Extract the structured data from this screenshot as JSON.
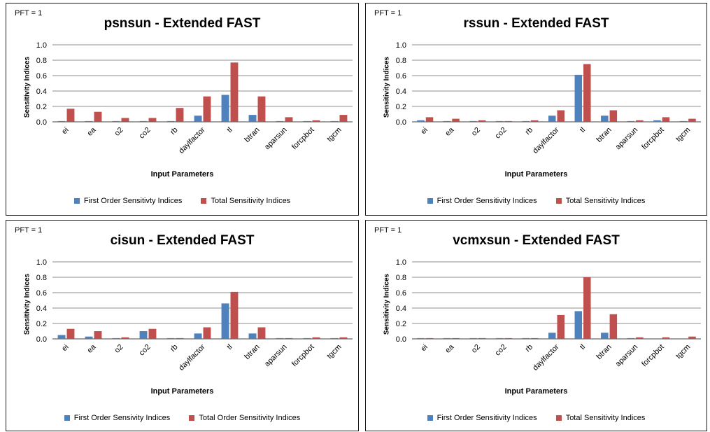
{
  "colors": {
    "first": "#4f81bd",
    "total": "#c0504d",
    "grid": "#8c8c8c"
  },
  "chart_data": [
    {
      "type": "bar",
      "pft_label": "PFT = 1",
      "title": "psnsun - Extended FAST",
      "xlabel": "Input Parameters",
      "ylabel": "Sensitivity Indices",
      "ylim": [
        0,
        1.0
      ],
      "yticks": [
        "0.0",
        "0.2",
        "0.4",
        "0.6",
        "0.8",
        "1.0"
      ],
      "categories": [
        "ei",
        "ea",
        "o2",
        "co2",
        "rb",
        "daylfactor",
        "tl",
        "btran",
        "aparsun",
        "forcpbot",
        "tgcm"
      ],
      "series": [
        {
          "name": "First Order Sensitivty Indices",
          "values": [
            0.01,
            0.01,
            0.01,
            0.01,
            0.01,
            0.08,
            0.35,
            0.09,
            0.01,
            0.01,
            0.01
          ]
        },
        {
          "name": "Total Sensitivity Indices",
          "values": [
            0.17,
            0.13,
            0.05,
            0.05,
            0.18,
            0.33,
            0.77,
            0.33,
            0.06,
            0.02,
            0.09
          ]
        }
      ]
    },
    {
      "type": "bar",
      "pft_label": "PFT = 1",
      "title": "rssun - Extended FAST",
      "xlabel": "Input Parameters",
      "ylabel": "Sensitivity Indices",
      "ylim": [
        0,
        1.0
      ],
      "yticks": [
        "0.0",
        "0.2",
        "0.4",
        "0.6",
        "0.8",
        "1.0"
      ],
      "categories": [
        "ei",
        "ea",
        "o2",
        "co2",
        "rb",
        "daylfactor",
        "tl",
        "btran",
        "aparsun",
        "forcpbot",
        "tgcm"
      ],
      "series": [
        {
          "name": "First Order Sensitivity Indices",
          "values": [
            0.02,
            0.01,
            0.01,
            0.01,
            0.01,
            0.08,
            0.61,
            0.08,
            0.01,
            0.02,
            0.01
          ]
        },
        {
          "name": "Total Sensitivity Indices",
          "values": [
            0.06,
            0.04,
            0.02,
            0.01,
            0.02,
            0.15,
            0.75,
            0.15,
            0.02,
            0.06,
            0.04
          ]
        }
      ]
    },
    {
      "type": "bar",
      "pft_label": "PFT = 1",
      "title": "cisun - Extended FAST",
      "xlabel": "Input Parameters",
      "ylabel": "Sensitivity Indices",
      "ylim": [
        0,
        1.0
      ],
      "yticks": [
        "0.0",
        "0.2",
        "0.4",
        "0.6",
        "0.8",
        "1.0"
      ],
      "categories": [
        "ei",
        "ea",
        "o2",
        "co2",
        "rb",
        "daylfactor",
        "tl",
        "btran",
        "aparsun",
        "forcpbot",
        "tgcm"
      ],
      "series": [
        {
          "name": "First Order Sensivity Indices",
          "values": [
            0.05,
            0.03,
            0.01,
            0.1,
            0.01,
            0.07,
            0.46,
            0.07,
            0.01,
            0.01,
            0.01
          ]
        },
        {
          "name": "Total Order Sensitivity Indices",
          "values": [
            0.13,
            0.1,
            0.02,
            0.13,
            0.01,
            0.15,
            0.61,
            0.15,
            0.01,
            0.02,
            0.02
          ]
        }
      ]
    },
    {
      "type": "bar",
      "pft_label": "PFT = 1",
      "title": "vcmxsun - Extended FAST",
      "xlabel": "Input Parameters",
      "ylabel": "Sensitivity Indices",
      "ylim": [
        0,
        1.0
      ],
      "yticks": [
        "0.0",
        "0.2",
        "0.4",
        "0.6",
        "0.8",
        "1.0"
      ],
      "categories": [
        "ei",
        "ea",
        "o2",
        "co2",
        "rb",
        "daylfactor",
        "tl",
        "btran",
        "aparsun",
        "forcpbot",
        "tgcm"
      ],
      "series": [
        {
          "name": "First Order Sensitivity Indices",
          "values": [
            0.01,
            0.01,
            0.01,
            0.01,
            0.01,
            0.08,
            0.36,
            0.08,
            0.01,
            0.0,
            0.0
          ]
        },
        {
          "name": "Total Sensitivity Indices",
          "values": [
            0.01,
            0.01,
            0.01,
            0.01,
            0.01,
            0.31,
            0.8,
            0.32,
            0.02,
            0.02,
            0.03
          ]
        }
      ]
    }
  ]
}
